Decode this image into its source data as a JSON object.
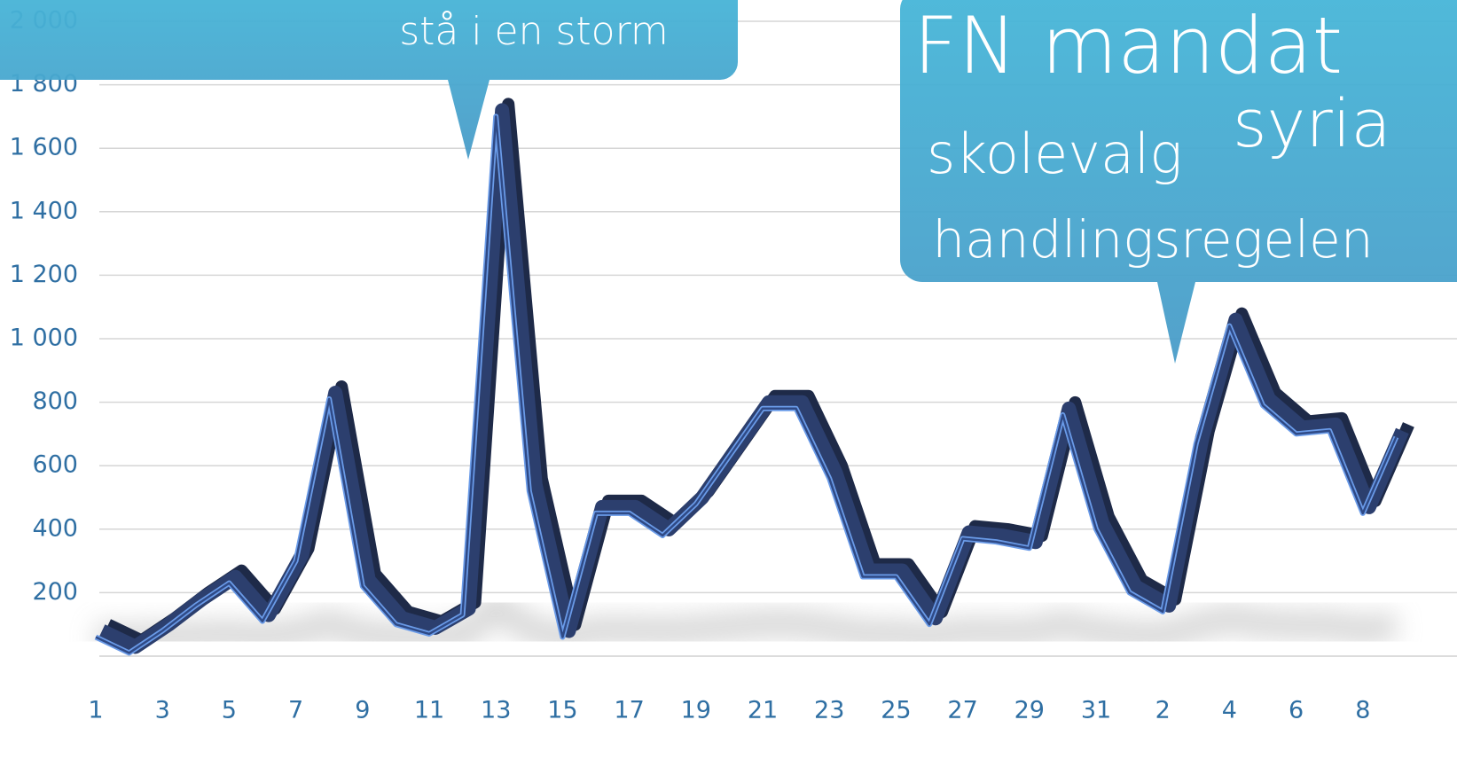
{
  "chart_data": {
    "type": "line",
    "categories": [
      "1",
      null,
      "3",
      null,
      "5",
      null,
      "7",
      null,
      "9",
      null,
      "11",
      null,
      "13",
      null,
      "15",
      null,
      "17",
      null,
      "19",
      null,
      "21",
      null,
      "23",
      null,
      "25",
      null,
      "27",
      null,
      "29",
      null,
      "31",
      null,
      "2",
      null,
      "4",
      null,
      "6",
      null,
      "8",
      null
    ],
    "series": [
      {
        "color": "#2c3f6e",
        "values": [
          60,
          10,
          80,
          160,
          230,
          110,
          300,
          810,
          220,
          100,
          70,
          130,
          1700,
          520,
          60,
          450,
          450,
          380,
          480,
          630,
          780,
          780,
          560,
          250,
          250,
          100,
          370,
          360,
          340,
          760,
          400,
          200,
          140,
          670,
          1040,
          790,
          700,
          710,
          450,
          690
        ]
      }
    ],
    "ylim": [
      0,
      2000
    ],
    "yticks": [
      200,
      400,
      600,
      800,
      {
        "value": 1000,
        "label": "1 000"
      },
      {
        "value": 1200,
        "label": "1 200"
      },
      {
        "value": 1400,
        "label": "1 400"
      },
      {
        "value": 1600,
        "label": "1 600"
      },
      {
        "value": 1800,
        "label": "1 800"
      },
      {
        "value": 2000,
        "label": "2 000"
      }
    ],
    "grid": true,
    "annotations": [
      {
        "text": "stå i en storm"
      },
      {
        "text": "FN mandat"
      },
      {
        "text": "syria"
      },
      {
        "text": "skolevalg"
      },
      {
        "text": "handlingsregelen"
      }
    ]
  }
}
